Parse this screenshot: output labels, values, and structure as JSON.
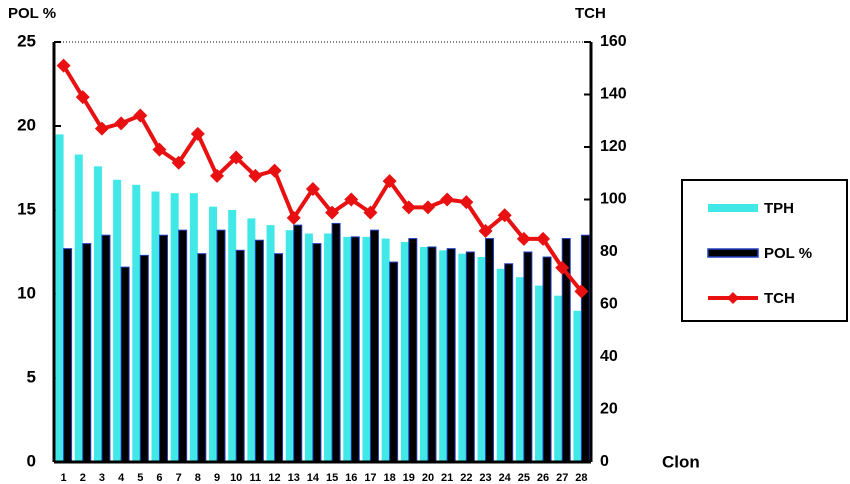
{
  "chart_data": {
    "type": "bar",
    "y_label": "POL %",
    "y2_label": "TCH",
    "x_label": "Clon",
    "categories": [
      "1",
      "2",
      "3",
      "4",
      "5",
      "6",
      "7",
      "8",
      "9",
      "10",
      "11",
      "12",
      "13",
      "14",
      "15",
      "16",
      "17",
      "18",
      "19",
      "20",
      "21",
      "22",
      "23",
      "24",
      "25",
      "26",
      "27",
      "28"
    ],
    "series": [
      {
        "name": "TPH",
        "color": "#40e8e8",
        "values": [
          19.5,
          18.3,
          17.6,
          16.8,
          16.5,
          16.1,
          16.0,
          16.0,
          15.2,
          15.0,
          14.5,
          14.1,
          13.8,
          13.6,
          13.6,
          13.4,
          13.4,
          13.3,
          13.1,
          12.8,
          12.6,
          12.4,
          12.2,
          11.5,
          11.0,
          10.5,
          9.9,
          9.0
        ]
      },
      {
        "name": "POL %",
        "color": "#000000",
        "values": [
          12.7,
          13.0,
          13.5,
          11.6,
          12.3,
          13.5,
          13.8,
          12.4,
          13.8,
          12.6,
          13.2,
          12.4,
          14.1,
          13.0,
          14.2,
          13.4,
          13.8,
          11.9,
          13.3,
          12.8,
          12.7,
          12.5,
          13.3,
          11.8,
          12.5,
          12.2,
          13.3,
          13.5
        ]
      },
      {
        "name": "TCH",
        "color": "#e81010",
        "type": "line",
        "axis": "y2",
        "values": [
          151,
          139,
          127,
          129,
          132,
          119,
          114,
          125,
          109,
          116,
          109,
          111,
          93,
          104,
          95,
          100,
          95,
          107,
          97,
          97,
          100,
          99,
          88,
          94,
          85,
          85,
          74,
          65
        ]
      }
    ],
    "ylim": [
      0,
      25
    ],
    "yticks": [
      0,
      5,
      10,
      15,
      20,
      25
    ],
    "y2lim": [
      0,
      160
    ],
    "y2ticks": [
      0,
      20,
      40,
      60,
      80,
      100,
      120,
      140,
      160
    ],
    "legend": "right"
  }
}
